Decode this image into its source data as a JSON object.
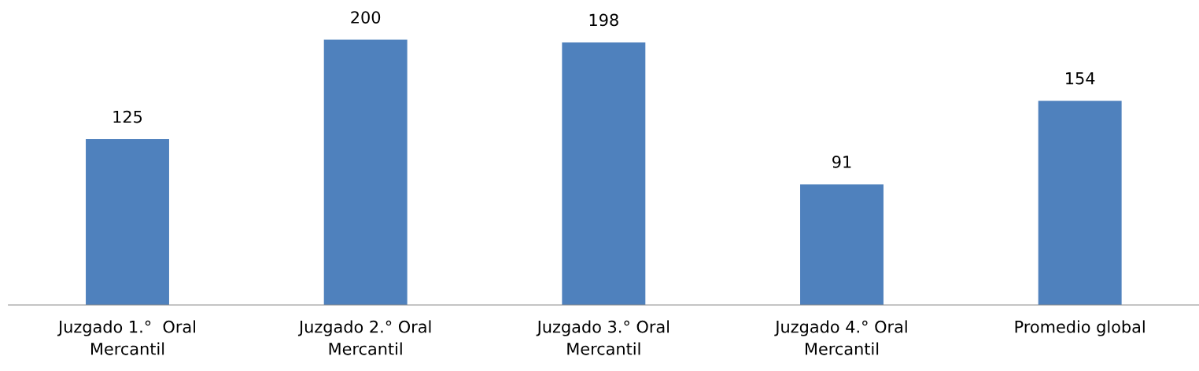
{
  "chart_data": {
    "type": "bar",
    "categories": [
      "Juzgado 1.°  Oral\nMercantil",
      "Juzgado 2.° Oral\nMercantil",
      "Juzgado 3.° Oral\nMercantil",
      "Juzgado 4.° Oral\nMercantil",
      "Promedio global"
    ],
    "values": [
      125,
      200,
      198,
      91,
      154
    ],
    "color": "#4f81bd",
    "data_labels": true
  }
}
